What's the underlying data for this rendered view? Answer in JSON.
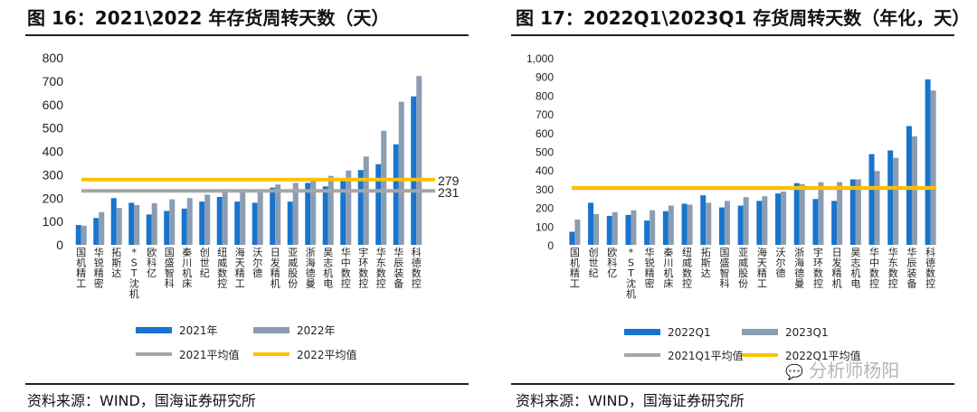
{
  "left": {
    "title": "图 16：2021\\2022 年存货周转天数（天）",
    "source": "资料来源：WIND，国海证券研究所"
  },
  "right": {
    "title": "图 17：2022Q1\\2023Q1 存货周转天数（年化，天）",
    "source": "资料来源：WIND，国海证券研究所"
  },
  "watermark": "分析师杨阳",
  "colors": {
    "blue": "#1874CD",
    "gray": "#8B9DB3",
    "avg_gray": "#A6A6A6",
    "avg_yellow": "#FFC000"
  },
  "chart_data": [
    {
      "type": "bar",
      "title": "2021\\2022 年存货周转天数（天）",
      "categories": [
        "国机精工",
        "华锐精密",
        "拓斯达",
        "*ST沈机",
        "欧科亿",
        "国盛智科",
        "秦川机床",
        "创世纪",
        "纽威数控",
        "海天精工",
        "沃尔德",
        "日发精机",
        "亚威股份",
        "浙海德曼",
        "昊志机电",
        "华中数控",
        "宇环数控",
        "华东数控",
        "华辰装备",
        "科德数控"
      ],
      "series": [
        {
          "name": "2021年",
          "values": [
            85,
            115,
            200,
            180,
            130,
            145,
            155,
            185,
            205,
            185,
            180,
            245,
            185,
            265,
            250,
            275,
            320,
            345,
            430,
            635
          ]
        },
        {
          "name": "2022年",
          "values": [
            82,
            140,
            158,
            170,
            178,
            195,
            200,
            215,
            225,
            228,
            235,
            258,
            265,
            275,
            295,
            318,
            378,
            488,
            612,
            722
          ]
        }
      ],
      "averages": [
        {
          "name": "2021平均值",
          "value": 231
        },
        {
          "name": "2022平均值",
          "value": 279
        }
      ],
      "avg_labels": [
        "279",
        "231"
      ],
      "yticks": [
        "0",
        "100",
        "200",
        "300",
        "400",
        "500",
        "600",
        "700",
        "800"
      ],
      "ylim": [
        0,
        800
      ]
    },
    {
      "type": "bar",
      "title": "2022Q1\\2023Q1 存货周转天数（年化，天）",
      "categories": [
        "国机精工",
        "创世纪",
        "欧科亿",
        "*ST沈机",
        "华锐精密",
        "秦川机床",
        "纽威数控",
        "拓斯达",
        "国盛智科",
        "亚威股份",
        "海天精工",
        "沃尔德",
        "浙海德曼",
        "宇环数控",
        "日发精机",
        "昊志机电",
        "华中数控",
        "华东数控",
        "华辰装备",
        "科德数控"
      ],
      "series": [
        {
          "name": "2022Q1",
          "values": [
            70,
            225,
            155,
            160,
            130,
            180,
            220,
            265,
            200,
            210,
            235,
            275,
            330,
            245,
            235,
            350,
            485,
            505,
            635,
            885
          ]
        },
        {
          "name": "2023Q1",
          "values": [
            135,
            165,
            175,
            185,
            185,
            210,
            215,
            225,
            235,
            255,
            260,
            285,
            325,
            335,
            335,
            350,
            395,
            465,
            580,
            825
          ]
        }
      ],
      "averages": [
        {
          "name": "2021Q1平均值",
          "value": 303
        },
        {
          "name": "2022Q1平均值",
          "value": 305
        }
      ],
      "yticks": [
        "0",
        "100",
        "200",
        "300",
        "400",
        "500",
        "600",
        "700",
        "800",
        "900",
        "1,000"
      ],
      "ylim": [
        0,
        1000
      ]
    }
  ]
}
